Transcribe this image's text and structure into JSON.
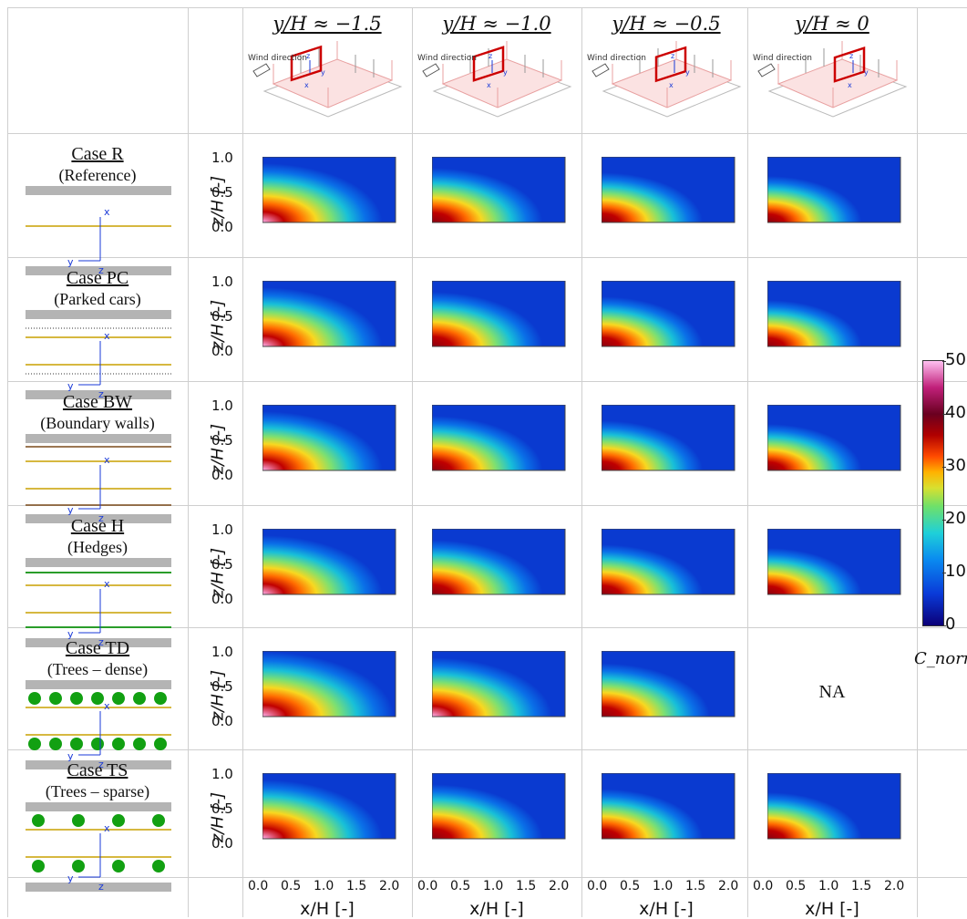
{
  "columns": [
    {
      "label": "y/H ≈ −1.5",
      "wind": "Wind direction"
    },
    {
      "label": "y/H ≈ −1.0",
      "wind": "Wind direction"
    },
    {
      "label": "y/H ≈ −0.5",
      "wind": "Wind direction"
    },
    {
      "label": "y/H ≈ 0",
      "wind": "Wind direction"
    }
  ],
  "cases": [
    {
      "name": "Case R",
      "desc": "(Reference)",
      "street": "reference"
    },
    {
      "name": "Case PC",
      "desc": "(Parked cars)",
      "street": "parked-cars"
    },
    {
      "name": "Case BW",
      "desc": "(Boundary walls)",
      "street": "boundary-walls"
    },
    {
      "name": "Case H",
      "desc": "(Hedges)",
      "street": "hedges"
    },
    {
      "name": "Case TD",
      "desc": "(Trees – dense)",
      "street": "trees-dense"
    },
    {
      "name": "Case TS",
      "desc": "(Trees – sparse)",
      "street": "trees-sparse"
    }
  ],
  "axis": {
    "ylabel": "z/H [-]",
    "yticks": [
      "1.0",
      "0.5",
      "0.0"
    ],
    "xlabel": "x/H [-]",
    "xticks": [
      "0.0",
      "0.5",
      "1.0",
      "1.5",
      "2.0"
    ]
  },
  "street_labels": {
    "x": "x",
    "y": "y",
    "z": "z"
  },
  "na_text": "NA",
  "colorbar": {
    "label": "C_norm",
    "ticks": [
      "50",
      "40",
      "30",
      "20",
      "10",
      "0"
    ],
    "range": [
      0,
      50
    ]
  },
  "colors": {
    "building": "#b4b4b4",
    "centerline": "#c8a000",
    "hedge": "#2a9d2a",
    "tree": "#12a012",
    "wall": "#7a4a1a",
    "axis_blue": "#1a3ad8"
  }
}
